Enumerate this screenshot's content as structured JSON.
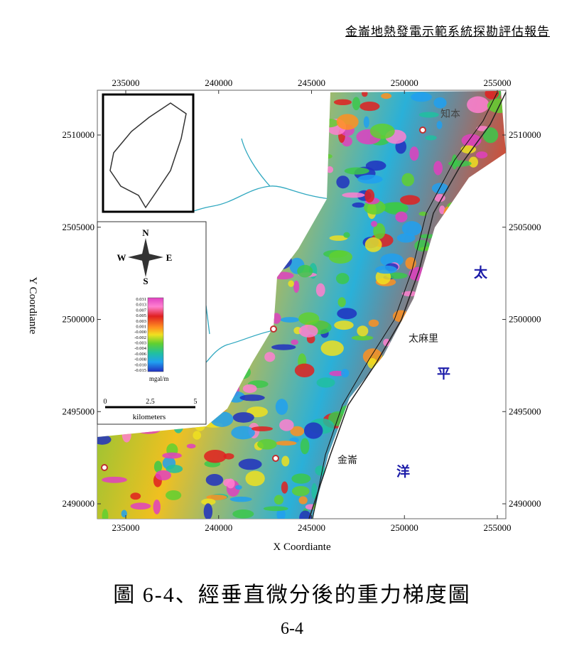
{
  "header": "金崙地熱發電示範系統探勘評估報告",
  "figure": {
    "xticks": [
      235000,
      240000,
      245000,
      250000,
      255000
    ],
    "yticks": [
      2490000,
      2495000,
      2500000,
      2505000,
      2510000
    ],
    "x_label": "X Coordiante",
    "y_label": "Y Coordiante",
    "legend": {
      "compass": {
        "n": "N",
        "e": "E",
        "s": "S",
        "w": "W"
      },
      "colorbar_labels": [
        "0.031",
        "0.013",
        "0.007",
        "0.005",
        "0.003",
        "0.001",
        "-0.000",
        "-0.002",
        "-0.003",
        "-0.004",
        "-0.006",
        "-0.008",
        "-0.010",
        "-0.015"
      ],
      "unit": "mgal/m",
      "scale_ticks": [
        "0",
        "2.5",
        "5"
      ],
      "scale_label": "kilometers"
    },
    "places": [
      "知本",
      "太麻里",
      "金崙"
    ],
    "ocean": [
      "太",
      "平",
      "洋"
    ]
  },
  "caption": "圖 6-4、經垂直微分後的重力梯度圖",
  "page_number": "6-4"
}
